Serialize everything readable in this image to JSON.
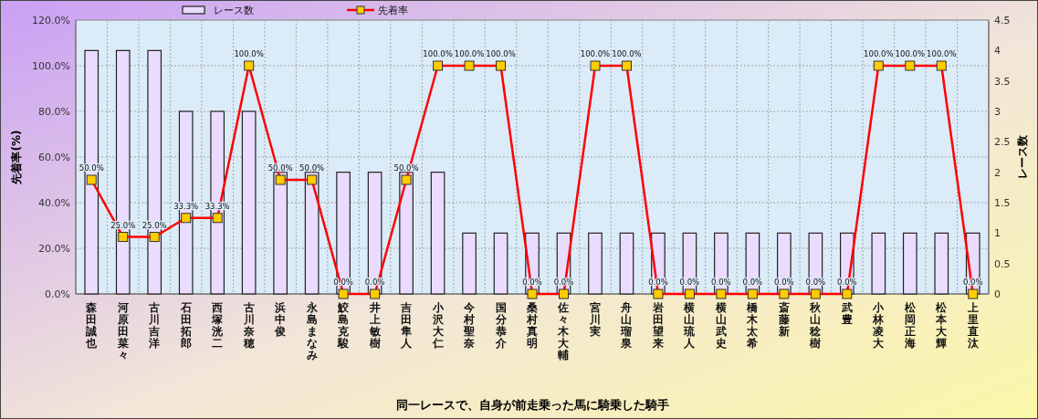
{
  "chart_data": {
    "type": "bar",
    "xlabel": "同一レースで、自身が前走乗った馬に騎乗した騎手",
    "ylabel": "先着率(%)",
    "y2label": "レース数",
    "categories": [
      "森田誠也",
      "河原田菜々",
      "古川吉洋",
      "石田拓郎",
      "西塚洸二",
      "古川奈穂",
      "浜中俊",
      "永島まなみ",
      "鮫島克駿",
      "井上敏樹",
      "吉田隼人",
      "小沢大仁",
      "今村聖奈",
      "国分恭介",
      "桑村真明",
      "佐々木大輔",
      "宮川実",
      "舟山瑠泉",
      "岩田望来",
      "横山琉人",
      "横山武史",
      "橋木太希",
      "斎藤新",
      "秋山稔樹",
      "武豊",
      "小林凌大",
      "松岡正海",
      "松本大輝",
      "上里直汰"
    ],
    "series": [
      {
        "name": "レース数",
        "axis": "y2",
        "color": "#eadcff",
        "values": [
          4,
          4,
          4,
          3,
          3,
          3,
          2,
          2,
          2,
          2,
          2,
          2,
          1,
          1,
          1,
          1,
          1,
          1,
          1,
          1,
          1,
          1,
          1,
          1,
          1,
          1,
          1,
          1,
          1
        ]
      },
      {
        "name": "先着率",
        "type": "line",
        "axis": "y",
        "color": "#ff0000",
        "marker": "square",
        "values": [
          50,
          25,
          25,
          33.3,
          33.3,
          100,
          50,
          50,
          0,
          0,
          50,
          100,
          100,
          100,
          0,
          0,
          100,
          100,
          0,
          0,
          0,
          0,
          0,
          0,
          0,
          100,
          100,
          100,
          0
        ],
        "value_labels": [
          "50.0%",
          "25.0%",
          "25.0%",
          "33.3%",
          "33.3%",
          "100.0%",
          "50.0%",
          "50.0%",
          "0.0%",
          "0.0%",
          "50.0%",
          "100.0%",
          "100.0%",
          "100.0%",
          "0.0%",
          "0.0%",
          "100.0%",
          "100.0%",
          "0.0%",
          "0.0%",
          "0.0%",
          "0.0%",
          "0.0%",
          "0.0%",
          "0.0%",
          "100.0%",
          "100.0%",
          "100.0%",
          "0.0%"
        ]
      }
    ],
    "ylim": [
      0,
      120
    ],
    "yticks": [
      {
        "value": 0,
        "label": "0.0%"
      },
      {
        "value": 20,
        "label": "20.0%"
      },
      {
        "value": 40,
        "label": "40.0%"
      },
      {
        "value": 60,
        "label": "60.0%"
      },
      {
        "value": 80,
        "label": "80.0%"
      },
      {
        "value": 100,
        "label": "100.0%"
      },
      {
        "value": 120,
        "label": "120.0%"
      }
    ],
    "y2lim": [
      0,
      4.5
    ],
    "y2ticks": [
      0,
      0.5,
      1,
      1.5,
      2,
      2.5,
      3,
      3.5,
      4,
      4.5
    ],
    "grid": true,
    "legend": "top"
  }
}
